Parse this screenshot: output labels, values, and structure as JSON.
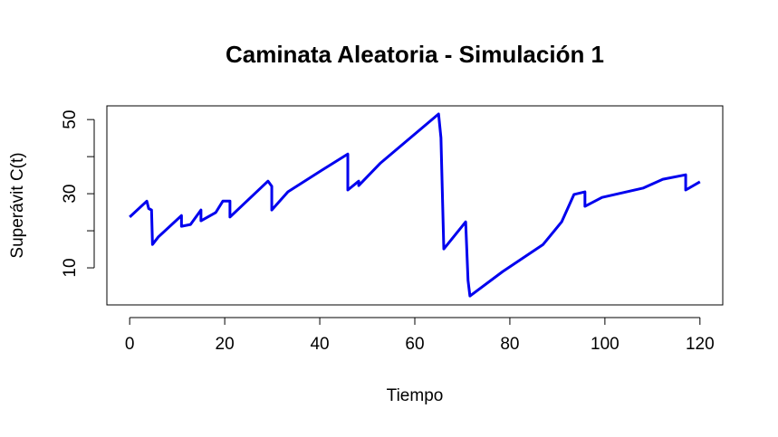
{
  "chart_data": {
    "type": "line",
    "title": "Caminata Aleatoria - Simulación 1",
    "xlabel": "Tiempo",
    "ylabel": "Superávit C(t)",
    "x": [
      0,
      3.6,
      4.0,
      4.6,
      4.8,
      6.0,
      10.9,
      10.9,
      12.8,
      15.0,
      15.0,
      18.1,
      19.6,
      21.1,
      21.1,
      29.1,
      29.9,
      29.9,
      33.3,
      40.4,
      45.9,
      45.9,
      48.2,
      48.2,
      52.8,
      65.0,
      65.5,
      66.1,
      70.7,
      71.2,
      71.6,
      78.5,
      87.0,
      90.9,
      93.5,
      95.8,
      95.8,
      99.4,
      108.0,
      112.2,
      117.0,
      117.0,
      120.0
    ],
    "series": [
      {
        "name": "C(t)",
        "color": "#0000ee",
        "values": [
          23.7,
          28.0,
          26.0,
          25.6,
          16.3,
          18.3,
          24.1,
          21.2,
          21.7,
          25.6,
          22.7,
          24.9,
          28.0,
          28.0,
          23.7,
          33.4,
          32.0,
          25.6,
          30.5,
          36.3,
          40.7,
          31.0,
          33.4,
          32.2,
          38.3,
          51.5,
          45.1,
          15.1,
          22.4,
          6.6,
          2.4,
          9.0,
          16.3,
          22.4,
          29.8,
          30.5,
          26.6,
          29.0,
          31.5,
          33.9,
          35.1,
          31.0,
          33.2
        ]
      }
    ],
    "xlim": [
      -4.8,
      124.8
    ],
    "ylim": [
      0,
      53.7
    ],
    "xticks": [
      0,
      20,
      40,
      60,
      80,
      100,
      120
    ],
    "yticks": [
      10,
      30,
      50
    ],
    "yticks_unlabeled": [
      20,
      40
    ]
  }
}
